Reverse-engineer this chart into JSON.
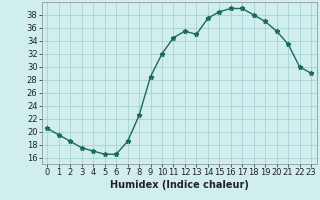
{
  "x": [
    0,
    1,
    2,
    3,
    4,
    5,
    6,
    7,
    8,
    9,
    10,
    11,
    12,
    13,
    14,
    15,
    16,
    17,
    18,
    19,
    20,
    21,
    22,
    23
  ],
  "y": [
    20.5,
    19.5,
    18.5,
    17.5,
    17.0,
    16.5,
    16.5,
    18.5,
    22.5,
    28.5,
    32.0,
    34.5,
    35.5,
    35.0,
    37.5,
    38.5,
    39.0,
    39.0,
    38.0,
    37.0,
    35.5,
    33.5,
    30.0,
    29.0
  ],
  "line_color": "#1a6b5a",
  "bg_color": "#d0eeee",
  "grid_color": "#a0cccc",
  "xlabel": "Humidex (Indice chaleur)",
  "xlim": [
    -0.5,
    23.5
  ],
  "ylim": [
    15.0,
    40.0
  ],
  "yticks": [
    16,
    18,
    20,
    22,
    24,
    26,
    28,
    30,
    32,
    34,
    36,
    38
  ],
  "xticks": [
    0,
    1,
    2,
    3,
    4,
    5,
    6,
    7,
    8,
    9,
    10,
    11,
    12,
    13,
    14,
    15,
    16,
    17,
    18,
    19,
    20,
    21,
    22,
    23
  ],
  "label_fontsize": 7.0,
  "tick_fontsize": 6.0,
  "marker_size": 3.5,
  "line_width": 1.0
}
